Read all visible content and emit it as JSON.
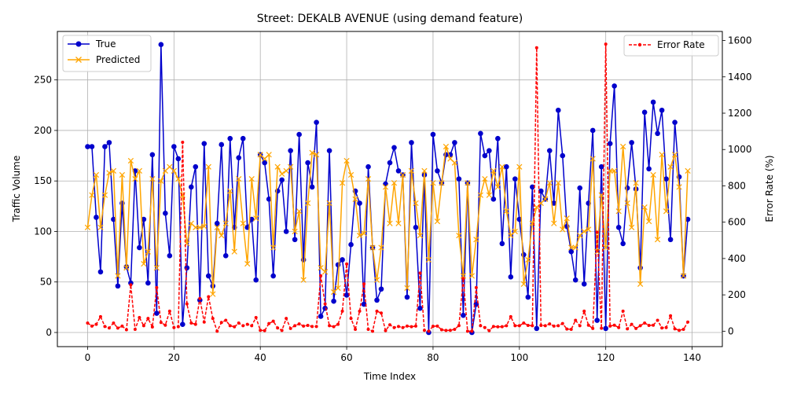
{
  "chart_data": {
    "type": "line",
    "title": "Street: DEKALB AVENUE (using demand feature)",
    "xlabel": "Time Index",
    "ylabel": "Traffic Volume",
    "y2label": "Error Rate (%)",
    "xlim": [
      -7,
      147
    ],
    "ylim": [
      -14,
      298
    ],
    "y2lim": [
      -85,
      1650
    ],
    "xticks": [
      0,
      20,
      40,
      60,
      80,
      100,
      120,
      140
    ],
    "yticks": [
      0,
      50,
      100,
      150,
      200,
      250
    ],
    "y2ticks": [
      0,
      200,
      400,
      600,
      800,
      1000,
      1200,
      1400,
      1600
    ],
    "grid": true,
    "legend_left": "top-left",
    "legend_right": "top-right",
    "x": [
      0,
      1,
      2,
      3,
      4,
      5,
      6,
      7,
      8,
      9,
      10,
      11,
      12,
      13,
      14,
      15,
      16,
      17,
      18,
      19,
      20,
      21,
      22,
      23,
      24,
      25,
      26,
      27,
      28,
      29,
      30,
      31,
      32,
      33,
      34,
      35,
      36,
      37,
      38,
      39,
      40,
      41,
      42,
      43,
      44,
      45,
      46,
      47,
      48,
      49,
      50,
      51,
      52,
      53,
      54,
      55,
      56,
      57,
      58,
      59,
      60,
      61,
      62,
      63,
      64,
      65,
      66,
      67,
      68,
      69,
      70,
      71,
      72,
      73,
      74,
      75,
      76,
      77,
      78,
      79,
      80,
      81,
      82,
      83,
      84,
      85,
      86,
      87,
      88,
      89,
      90,
      91,
      92,
      93,
      94,
      95,
      96,
      97,
      98,
      99,
      100,
      101,
      102,
      103,
      104,
      105,
      106,
      107,
      108,
      109,
      110,
      111,
      112,
      113,
      114,
      115,
      116,
      117,
      118,
      119,
      120,
      121,
      122,
      123,
      124,
      125,
      126,
      127,
      128,
      129,
      130,
      131,
      132,
      133,
      134,
      135,
      136,
      137,
      138,
      139
    ],
    "series": [
      {
        "name": "True",
        "axis": "left",
        "color": "#0000cc",
        "values": [
          184,
          184,
          114,
          60,
          184,
          188,
          112,
          46,
          128,
          65,
          49,
          160,
          84,
          112,
          49,
          176,
          19,
          285,
          118,
          76,
          184,
          172,
          8,
          64,
          144,
          164,
          32,
          187,
          56,
          46,
          108,
          186,
          76,
          192,
          104,
          173,
          192,
          104,
          112,
          52,
          176,
          168,
          132,
          56,
          140,
          151,
          100,
          180,
          92,
          196,
          72,
          168,
          144,
          208,
          16,
          24,
          180,
          31,
          67,
          72,
          37,
          87,
          140,
          128,
          28,
          164,
          84,
          32,
          43,
          147,
          168,
          183,
          160,
          156,
          35,
          188,
          104,
          24,
          156,
          0,
          196,
          160,
          148,
          176,
          176,
          188,
          152,
          17,
          148,
          0,
          28,
          197,
          175,
          180,
          132,
          192,
          88,
          164,
          55,
          152,
          112,
          77,
          35,
          144,
          4,
          140,
          132,
          180,
          128,
          220,
          175,
          105,
          80,
          52,
          143,
          48,
          128,
          200,
          12,
          164,
          4,
          187,
          244,
          104,
          88,
          143,
          188,
          142,
          64,
          218,
          162,
          228,
          197,
          220,
          152,
          92,
          208,
          154,
          56,
          112
        ]
      },
      {
        "name": "Predicted",
        "axis": "left",
        "color": "#ffa500",
        "values": [
          104,
          136,
          156,
          104,
          136,
          158,
          160,
          56,
          156,
          64,
          170,
          152,
          160,
          68,
          80,
          152,
          64,
          150,
          160,
          164,
          160,
          152,
          136,
          88,
          108,
          104,
          104,
          105,
          164,
          38,
          104,
          96,
          108,
          140,
          80,
          152,
          108,
          68,
          152,
          113,
          176,
          172,
          176,
          84,
          164,
          157,
          160,
          164,
          100,
          120,
          52,
          128,
          178,
          176,
          64,
          60,
          128,
          40,
          44,
          148,
          170,
          156,
          132,
          96,
          98,
          152,
          84,
          52,
          84,
          144,
          108,
          148,
          108,
          156,
          44,
          160,
          128,
          96,
          160,
          72,
          148,
          110,
          148,
          184,
          172,
          168,
          96,
          56,
          148,
          56,
          92,
          136,
          152,
          136,
          160,
          144,
          164,
          120,
          96,
          100,
          164,
          48,
          72,
          108,
          124,
          128,
          132,
          148,
          108,
          148,
          102,
          113,
          84,
          84,
          96,
          100,
          102,
          172,
          80,
          136,
          84,
          160,
          160,
          120,
          184,
          128,
          104,
          148,
          48,
          124,
          110,
          156,
          92,
          176,
          120,
          164,
          176,
          144,
          56,
          160
        ]
      },
      {
        "name": "Error Rate",
        "axis": "right",
        "color": "#ff0000",
        "values": [
          45,
          28,
          38,
          80,
          26,
          18,
          45,
          17,
          28,
          8,
          255,
          10,
          75,
          30,
          70,
          23,
          240,
          48,
          33,
          110,
          20,
          25,
          1040,
          150,
          45,
          38,
          180,
          50,
          190,
          70,
          0,
          48,
          60,
          30,
          24,
          45,
          30,
          38,
          30,
          75,
          5,
          3,
          42,
          55,
          18,
          4,
          70,
          15,
          30,
          40,
          28,
          32,
          26,
          26,
          305,
          150,
          30,
          25,
          38,
          110,
          370,
          70,
          10,
          110,
          260,
          10,
          0,
          110,
          100,
          3,
          35,
          20,
          26,
          20,
          28,
          25,
          28,
          320,
          5,
          0,
          27,
          28,
          8,
          4,
          5,
          10,
          31,
          290,
          0,
          0,
          240,
          30,
          20,
          3,
          26,
          24,
          25,
          30,
          80,
          30,
          30,
          45,
          32,
          30,
          1560,
          32,
          30,
          40,
          28,
          30,
          42,
          12,
          10,
          60,
          30,
          110,
          33,
          15,
          545,
          16,
          1580,
          28,
          33,
          20,
          110,
          13,
          38,
          15,
          30,
          45,
          32,
          33,
          60,
          18,
          20,
          85,
          13,
          5,
          10,
          50
        ]
      }
    ]
  }
}
